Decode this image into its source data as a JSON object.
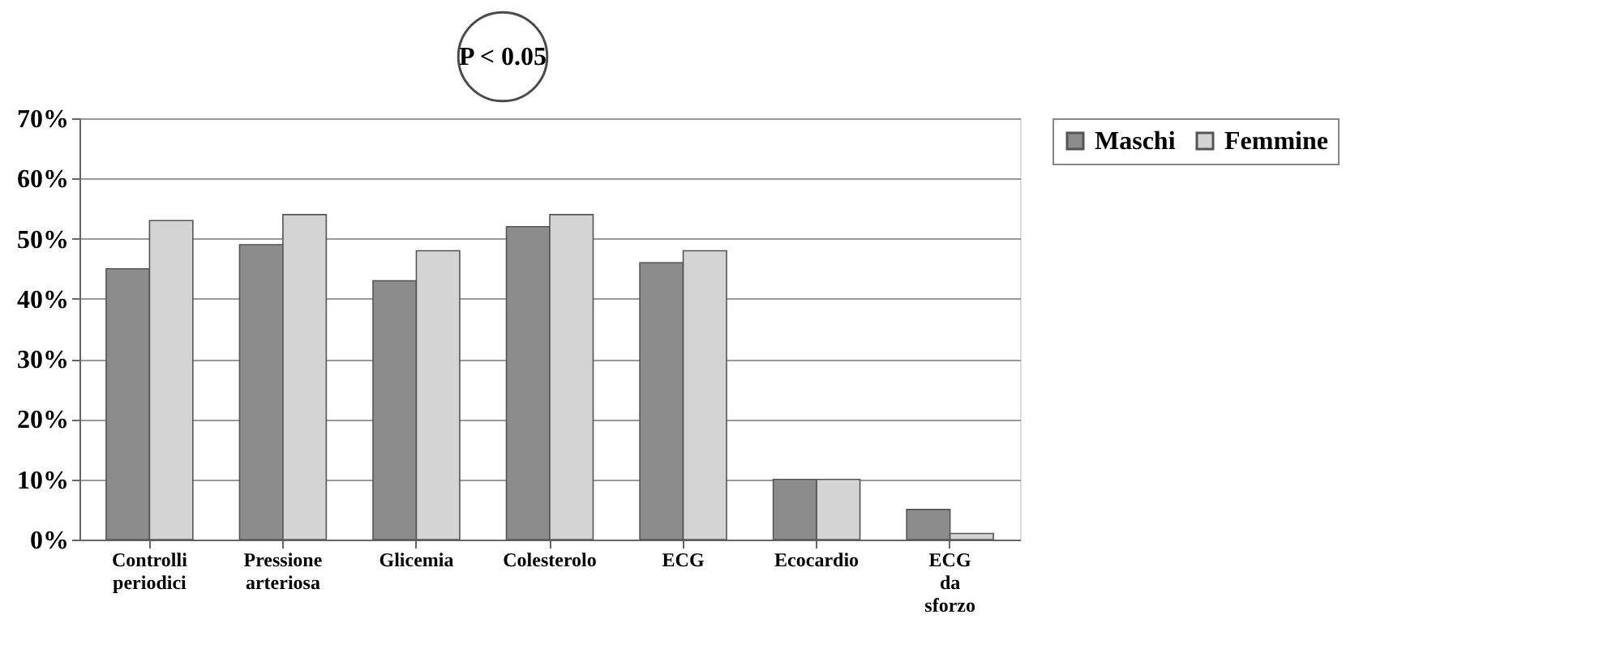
{
  "chart_data": {
    "type": "bar",
    "categories": [
      "Controlli periodici",
      "Pressione arteriosa",
      "Glicemia",
      "Colesterolo",
      "ECG",
      "Ecocardio",
      "ECG da sforzo"
    ],
    "series": [
      {
        "name": "Maschi",
        "color": "#8c8c8c",
        "values": [
          45,
          49,
          43,
          52,
          46,
          10,
          5
        ]
      },
      {
        "name": "Femmine",
        "color": "#d4d4d4",
        "values": [
          53,
          54,
          48,
          54,
          48,
          10,
          1
        ]
      }
    ],
    "ylim": [
      0,
      70
    ],
    "yticks": [
      {
        "value": 0,
        "label": "0%"
      },
      {
        "value": 10,
        "label": "10%"
      },
      {
        "value": 20,
        "label": "20%"
      },
      {
        "value": 30,
        "label": "30%"
      },
      {
        "value": 40,
        "label": "40%"
      },
      {
        "value": 50,
        "label": "50%"
      },
      {
        "value": 60,
        "label": "60%"
      },
      {
        "value": 70,
        "label": "70%"
      }
    ],
    "grid": "y",
    "legend": "top right",
    "annotations": [
      "P < 0.05"
    ]
  }
}
